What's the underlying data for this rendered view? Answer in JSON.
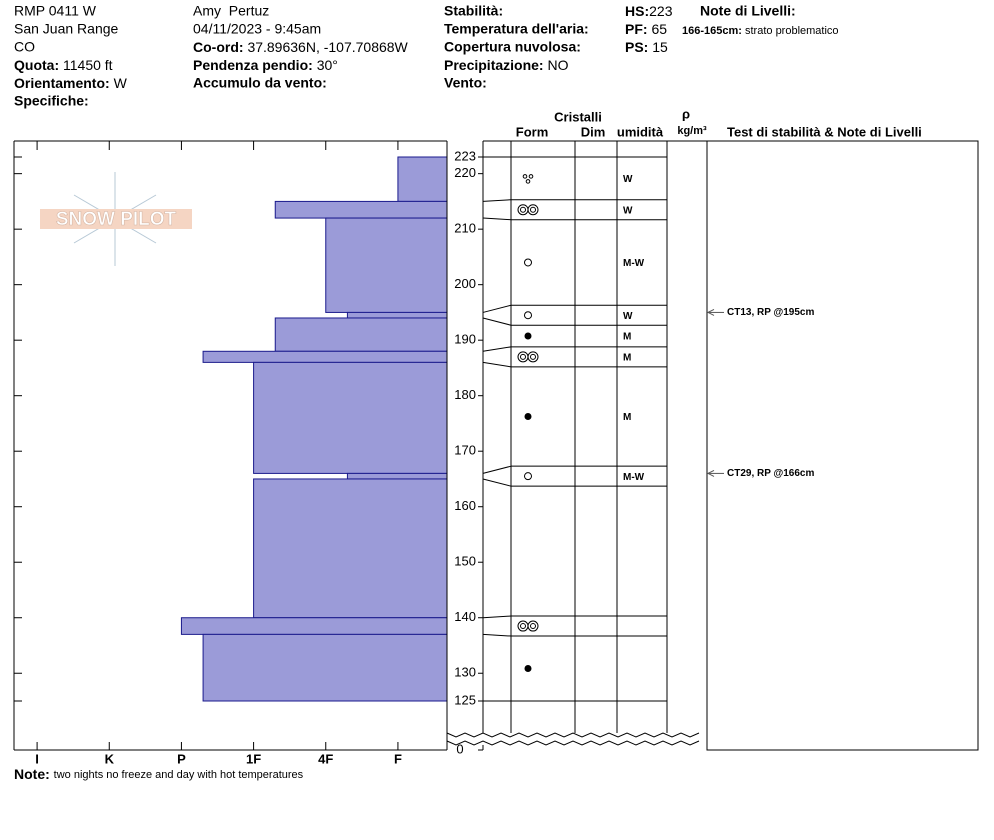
{
  "header": {
    "site": "RMP 0411 W",
    "range": "San Juan Range",
    "state": "CO",
    "elevation": {
      "label": "Quota:",
      "value": "11450 ft"
    },
    "aspect": {
      "label": "Orientamento:",
      "value": "W"
    },
    "specifics": {
      "label": "Specifiche:"
    },
    "observer": "Amy  Pertuz",
    "datetime": "04/11/2023 - 9:45am",
    "coords": {
      "label": "Co-ord:",
      "value": "37.89636N, -107.70868W"
    },
    "slope": {
      "label": "Pendenza pendio:",
      "value": "30°"
    },
    "wind_loading": {
      "label": "Accumulo da vento:"
    },
    "stability": {
      "label": "Stabilità:"
    },
    "air_temp": {
      "label": "Temperatura dell'aria:"
    },
    "sky": {
      "label": "Copertura nuvolosa:"
    },
    "precip": {
      "label": "Precipitazione:",
      "value": "NO"
    },
    "wind": {
      "label": "Vento:"
    },
    "hs": {
      "label": "HS:",
      "value": 223
    },
    "pf": {
      "label": "PF:",
      "value": 65
    },
    "ps": {
      "label": "PS:",
      "value": 15
    },
    "layer_notes": {
      "label": "Note di Livelli:",
      "depth": "166-165cm:",
      "text": "strato problematico"
    }
  },
  "logo": "SNOW PILOT",
  "columns": {
    "crystals": "Cristalli",
    "form": "Form",
    "size": "Dim",
    "moisture": "umidità",
    "density": "ρ",
    "density_unit": "kg/m³",
    "tests": "Test di stabilità & Note di Livelli"
  },
  "tests": [
    {
      "depth": 195,
      "text": "CT13, RP @195cm"
    },
    {
      "depth": 166,
      "text": "CT29, RP @166cm"
    }
  ],
  "note": {
    "label": "Note:",
    "text": "two nights no freeze and day with hot temperatures"
  },
  "chart_data": {
    "type": "hardness-profile",
    "color": "#9b9bd8",
    "xlim": [
      6.32,
      0.32
    ],
    "xticks": [
      {
        "value": 6,
        "label": "I"
      },
      {
        "value": 5,
        "label": "K"
      },
      {
        "value": 4,
        "label": "P"
      },
      {
        "value": 3,
        "label": "1F"
      },
      {
        "value": 2,
        "label": "4F"
      },
      {
        "value": 1,
        "label": "F"
      }
    ],
    "ylim": [
      125,
      223
    ],
    "yticks": [
      125,
      130,
      140,
      150,
      160,
      170,
      180,
      190,
      200,
      210,
      220,
      223
    ],
    "bottom_tick": 0,
    "layers": [
      {
        "top": 223,
        "bottom": 215,
        "hardness": 1,
        "moisture": "W"
      },
      {
        "top": 215,
        "bottom": 212,
        "hardness": 2.7,
        "moisture": "W"
      },
      {
        "top": 212,
        "bottom": 195,
        "hardness": 2,
        "moisture": "M-W"
      },
      {
        "top": 195,
        "bottom": 194,
        "hardness": 1.7,
        "moisture": "W"
      },
      {
        "top": 194,
        "bottom": 188,
        "hardness": 2.7,
        "moisture": "M"
      },
      {
        "top": 188,
        "bottom": 186,
        "hardness": 3.7,
        "moisture": "M"
      },
      {
        "top": 186,
        "bottom": 166,
        "hardness": 3,
        "moisture": "M"
      },
      {
        "top": 166,
        "bottom": 165,
        "hardness": 1.7,
        "moisture": "M-W"
      },
      {
        "top": 165,
        "bottom": 140,
        "hardness": 3
      },
      {
        "top": 140,
        "bottom": 137,
        "hardness": 4
      },
      {
        "top": 137,
        "bottom": 125,
        "hardness": 3.7
      }
    ]
  }
}
